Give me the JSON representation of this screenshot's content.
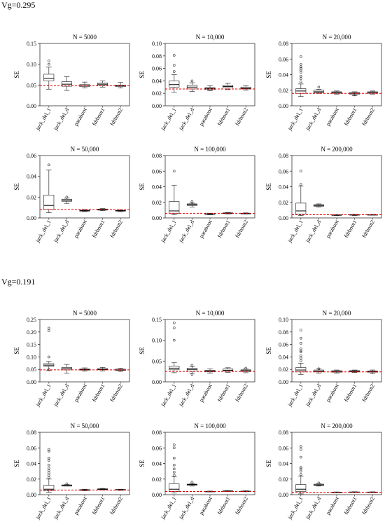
{
  "sections": [
    {
      "label": "Vg=0.295"
    },
    {
      "label": "Vg=0.191"
    }
  ],
  "chart_data": [
    {
      "type": "box",
      "title": "N = 5000",
      "ylabel": "SE",
      "ylim": [
        0,
        0.15
      ],
      "yticks": [
        0.0,
        0.05,
        0.1,
        0.15
      ],
      "ref_line": 0.048,
      "categories": [
        "jack_del_1",
        "jack_del_d",
        "paraboot",
        "fdrboot1",
        "fdrboot2"
      ],
      "boxes": [
        {
          "min": 0.04,
          "q1": 0.06,
          "median": 0.066,
          "q3": 0.076,
          "max": 0.093,
          "outliers": [
            0.1,
            0.108
          ]
        },
        {
          "min": 0.037,
          "q1": 0.047,
          "median": 0.052,
          "q3": 0.058,
          "max": 0.07,
          "outliers": []
        },
        {
          "min": 0.043,
          "q1": 0.046,
          "median": 0.048,
          "q3": 0.051,
          "max": 0.057,
          "outliers": []
        },
        {
          "min": 0.045,
          "q1": 0.049,
          "median": 0.052,
          "q3": 0.055,
          "max": 0.06,
          "outliers": []
        },
        {
          "min": 0.043,
          "q1": 0.046,
          "median": 0.048,
          "q3": 0.05,
          "max": 0.056,
          "outliers": []
        }
      ]
    },
    {
      "type": "box",
      "title": "N = 10,000",
      "ylabel": "SE",
      "ylim": [
        0,
        0.1
      ],
      "yticks": [
        0.0,
        0.02,
        0.04,
        0.06,
        0.08,
        0.1
      ],
      "ref_line": 0.027,
      "categories": [
        "jack_del_1",
        "jack_del_d",
        "paraboot",
        "fdrboot1",
        "fdrboot2"
      ],
      "boxes": [
        {
          "min": 0.022,
          "q1": 0.03,
          "median": 0.034,
          "q3": 0.04,
          "max": 0.05,
          "outliers": [
            0.055,
            0.065,
            0.081
          ]
        },
        {
          "min": 0.023,
          "q1": 0.027,
          "median": 0.03,
          "q3": 0.033,
          "max": 0.037,
          "outliers": [
            0.04
          ]
        },
        {
          "min": 0.024,
          "q1": 0.026,
          "median": 0.028,
          "q3": 0.029,
          "max": 0.032,
          "outliers": []
        },
        {
          "min": 0.026,
          "q1": 0.029,
          "median": 0.031,
          "q3": 0.033,
          "max": 0.036,
          "outliers": []
        },
        {
          "min": 0.025,
          "q1": 0.027,
          "median": 0.028,
          "q3": 0.03,
          "max": 0.032,
          "outliers": []
        }
      ]
    },
    {
      "type": "box",
      "title": "N = 20,000",
      "ylabel": "SE",
      "ylim": [
        0,
        0.08
      ],
      "yticks": [
        0.0,
        0.02,
        0.04,
        0.06,
        0.08
      ],
      "ref_line": 0.016,
      "categories": [
        "jack_del_1",
        "jack_del_d",
        "paraboot",
        "fdrboot1",
        "fdrboot2"
      ],
      "boxes": [
        {
          "min": 0.012,
          "q1": 0.016,
          "median": 0.019,
          "q3": 0.022,
          "max": 0.028,
          "outliers": [
            0.031,
            0.035,
            0.038,
            0.043,
            0.046,
            0.048,
            0.05,
            0.053,
            0.063
          ]
        },
        {
          "min": 0.016,
          "q1": 0.017,
          "median": 0.018,
          "q3": 0.02,
          "max": 0.021,
          "outliers": [
            0.024
          ]
        },
        {
          "min": 0.015,
          "q1": 0.016,
          "median": 0.017,
          "q3": 0.018,
          "max": 0.019,
          "outliers": []
        },
        {
          "min": 0.013,
          "q1": 0.015,
          "median": 0.016,
          "q3": 0.017,
          "max": 0.018,
          "outliers": [
            0.014
          ]
        },
        {
          "min": 0.015,
          "q1": 0.016,
          "median": 0.017,
          "q3": 0.018,
          "max": 0.019,
          "outliers": []
        }
      ]
    },
    {
      "type": "box",
      "title": "N = 50,000",
      "ylabel": "SE",
      "ylim": [
        0,
        0.06
      ],
      "yticks": [
        0.0,
        0.02,
        0.04,
        0.06
      ],
      "ref_line": 0.008,
      "categories": [
        "jack_del_1",
        "jack_del_d",
        "paraboot",
        "fdrboot1",
        "fdrboot2"
      ],
      "boxes": [
        {
          "min": 0.005,
          "q1": 0.008,
          "median": 0.012,
          "q3": 0.022,
          "max": 0.046,
          "outliers": [
            0.051
          ]
        },
        {
          "min": 0.014,
          "q1": 0.016,
          "median": 0.017,
          "q3": 0.018,
          "max": 0.019,
          "outliers": [
            0.02
          ]
        },
        {
          "min": 0.006,
          "q1": 0.0065,
          "median": 0.007,
          "q3": 0.0075,
          "max": 0.008,
          "outliers": []
        },
        {
          "min": 0.007,
          "q1": 0.0075,
          "median": 0.008,
          "q3": 0.0085,
          "max": 0.009,
          "outliers": []
        },
        {
          "min": 0.006,
          "q1": 0.0065,
          "median": 0.007,
          "q3": 0.0072,
          "max": 0.008,
          "outliers": []
        }
      ]
    },
    {
      "type": "box",
      "title": "N = 100,000",
      "ylabel": "SE",
      "ylim": [
        0,
        0.08
      ],
      "yticks": [
        0.0,
        0.02,
        0.04,
        0.06,
        0.08
      ],
      "ref_line": 0.006,
      "categories": [
        "jack_del_1",
        "jack_del_d",
        "paraboot",
        "fdrboot1",
        "fdrboot2"
      ],
      "boxes": [
        {
          "min": 0.004,
          "q1": 0.006,
          "median": 0.009,
          "q3": 0.021,
          "max": 0.042,
          "outliers": [
            0.06
          ]
        },
        {
          "min": 0.014,
          "q1": 0.016,
          "median": 0.017,
          "q3": 0.018,
          "max": 0.019,
          "outliers": [
            0.021
          ]
        },
        {
          "min": 0.004,
          "q1": 0.0045,
          "median": 0.005,
          "q3": 0.0055,
          "max": 0.006,
          "outliers": []
        },
        {
          "min": 0.005,
          "q1": 0.0055,
          "median": 0.006,
          "q3": 0.0065,
          "max": 0.007,
          "outliers": []
        },
        {
          "min": 0.005,
          "q1": 0.0052,
          "median": 0.0055,
          "q3": 0.006,
          "max": 0.0065,
          "outliers": []
        }
      ]
    },
    {
      "type": "box",
      "title": "N = 200,000",
      "ylabel": "SE",
      "ylim": [
        0,
        0.08
      ],
      "yticks": [
        0.0,
        0.02,
        0.04,
        0.06,
        0.08
      ],
      "ref_line": 0.004,
      "categories": [
        "jack_del_1",
        "jack_del_d",
        "paraboot",
        "fdrboot1",
        "fdrboot2"
      ],
      "boxes": [
        {
          "min": 0.003,
          "q1": 0.005,
          "median": 0.009,
          "q3": 0.019,
          "max": 0.041,
          "outliers": [
            0.043,
            0.06
          ]
        },
        {
          "min": 0.014,
          "q1": 0.015,
          "median": 0.016,
          "q3": 0.017,
          "max": 0.018,
          "outliers": []
        },
        {
          "min": 0.003,
          "q1": 0.0033,
          "median": 0.0036,
          "q3": 0.004,
          "max": 0.0043,
          "outliers": []
        },
        {
          "min": 0.003,
          "q1": 0.0035,
          "median": 0.004,
          "q3": 0.0043,
          "max": 0.0046,
          "outliers": []
        },
        {
          "min": 0.0035,
          "q1": 0.0037,
          "median": 0.004,
          "q3": 0.0042,
          "max": 0.0045,
          "outliers": []
        }
      ]
    },
    {
      "type": "box",
      "title": "N = 5000",
      "ylabel": "SE",
      "ylim": [
        0,
        0.25
      ],
      "yticks": [
        0.0,
        0.05,
        0.1,
        0.15,
        0.2,
        0.25
      ],
      "ref_line": 0.048,
      "categories": [
        "jack_del_1",
        "jack_del_d",
        "paraboot",
        "fdrboot1",
        "fdrboot2"
      ],
      "boxes": [
        {
          "min": 0.045,
          "q1": 0.062,
          "median": 0.067,
          "q3": 0.073,
          "max": 0.082,
          "outliers": [
            0.05,
            0.1,
            0.205,
            0.215
          ]
        },
        {
          "min": 0.035,
          "q1": 0.048,
          "median": 0.053,
          "q3": 0.058,
          "max": 0.07,
          "outliers": []
        },
        {
          "min": 0.043,
          "q1": 0.047,
          "median": 0.049,
          "q3": 0.052,
          "max": 0.056,
          "outliers": []
        },
        {
          "min": 0.044,
          "q1": 0.048,
          "median": 0.05,
          "q3": 0.053,
          "max": 0.058,
          "outliers": []
        },
        {
          "min": 0.042,
          "q1": 0.046,
          "median": 0.048,
          "q3": 0.051,
          "max": 0.055,
          "outliers": []
        }
      ]
    },
    {
      "type": "box",
      "title": "N = 10,000",
      "ylabel": "SE",
      "ylim": [
        0,
        0.15
      ],
      "yticks": [
        0.0,
        0.05,
        0.1,
        0.15
      ],
      "ref_line": 0.025,
      "categories": [
        "jack_del_1",
        "jack_del_d",
        "paraboot",
        "fdrboot1",
        "fdrboot2"
      ],
      "boxes": [
        {
          "min": 0.022,
          "q1": 0.029,
          "median": 0.033,
          "q3": 0.038,
          "max": 0.046,
          "outliers": [
            0.1,
            0.13,
            0.142
          ]
        },
        {
          "min": 0.021,
          "q1": 0.026,
          "median": 0.03,
          "q3": 0.033,
          "max": 0.037,
          "outliers": [
            0.018,
            0.04
          ]
        },
        {
          "min": 0.021,
          "q1": 0.024,
          "median": 0.026,
          "q3": 0.028,
          "max": 0.031,
          "outliers": []
        },
        {
          "min": 0.023,
          "q1": 0.026,
          "median": 0.028,
          "q3": 0.031,
          "max": 0.034,
          "outliers": []
        },
        {
          "min": 0.022,
          "q1": 0.025,
          "median": 0.027,
          "q3": 0.029,
          "max": 0.031,
          "outliers": [
            0.033
          ]
        }
      ]
    },
    {
      "type": "box",
      "title": "N = 20,000",
      "ylabel": "SE",
      "ylim": [
        0,
        0.1
      ],
      "yticks": [
        0.0,
        0.02,
        0.04,
        0.06,
        0.08,
        0.1
      ],
      "ref_line": 0.016,
      "categories": [
        "jack_del_1",
        "jack_del_d",
        "paraboot",
        "fdrboot1",
        "fdrboot2"
      ],
      "boxes": [
        {
          "min": 0.012,
          "q1": 0.016,
          "median": 0.019,
          "q3": 0.023,
          "max": 0.03,
          "outliers": [
            0.034,
            0.038,
            0.042,
            0.048,
            0.05,
            0.053,
            0.062,
            0.07,
            0.083
          ]
        },
        {
          "min": 0.014,
          "q1": 0.016,
          "median": 0.017,
          "q3": 0.019,
          "max": 0.021,
          "outliers": [
            0.021
          ]
        },
        {
          "min": 0.014,
          "q1": 0.0155,
          "median": 0.0165,
          "q3": 0.018,
          "max": 0.019,
          "outliers": []
        },
        {
          "min": 0.015,
          "q1": 0.016,
          "median": 0.017,
          "q3": 0.018,
          "max": 0.019,
          "outliers": []
        },
        {
          "min": 0.013,
          "q1": 0.0155,
          "median": 0.0165,
          "q3": 0.0175,
          "max": 0.019,
          "outliers": []
        }
      ]
    },
    {
      "type": "box",
      "title": "N = 50,000",
      "ylabel": "SE",
      "ylim": [
        0,
        0.08
      ],
      "yticks": [
        0.0,
        0.02,
        0.04,
        0.06,
        0.08
      ],
      "ref_line": 0.006,
      "categories": [
        "jack_del_1",
        "jack_del_d",
        "paraboot",
        "fdrboot1",
        "fdrboot2"
      ],
      "boxes": [
        {
          "min": 0.003,
          "q1": 0.005,
          "median": 0.007,
          "q3": 0.012,
          "max": 0.02,
          "outliers": [
            0.022,
            0.025,
            0.028,
            0.031,
            0.034,
            0.038,
            0.044,
            0.047,
            0.056,
            0.058
          ]
        },
        {
          "min": 0.011,
          "q1": 0.011,
          "median": 0.012,
          "q3": 0.0125,
          "max": 0.013,
          "outliers": [
            0.014
          ]
        },
        {
          "min": 0.005,
          "q1": 0.0055,
          "median": 0.006,
          "q3": 0.0065,
          "max": 0.007,
          "outliers": []
        },
        {
          "min": 0.006,
          "q1": 0.0065,
          "median": 0.007,
          "q3": 0.0075,
          "max": 0.008,
          "outliers": []
        },
        {
          "min": 0.0055,
          "q1": 0.006,
          "median": 0.0063,
          "q3": 0.0067,
          "max": 0.007,
          "outliers": []
        }
      ]
    },
    {
      "type": "box",
      "title": "N = 100,000",
      "ylabel": "SE",
      "ylim": [
        0,
        0.08
      ],
      "yticks": [
        0.0,
        0.02,
        0.04,
        0.06,
        0.08
      ],
      "ref_line": 0.004,
      "categories": [
        "jack_del_1",
        "jack_del_d",
        "paraboot",
        "fdrboot1",
        "fdrboot2"
      ],
      "boxes": [
        {
          "min": 0.002,
          "q1": 0.004,
          "median": 0.007,
          "q3": 0.014,
          "max": 0.023,
          "outliers": [
            0.025,
            0.029,
            0.033,
            0.038,
            0.047,
            0.06,
            0.064
          ]
        },
        {
          "min": 0.011,
          "q1": 0.012,
          "median": 0.013,
          "q3": 0.0135,
          "max": 0.015,
          "outliers": [
            0.016
          ]
        },
        {
          "min": 0.0035,
          "q1": 0.0038,
          "median": 0.004,
          "q3": 0.0043,
          "max": 0.0046,
          "outliers": []
        },
        {
          "min": 0.004,
          "q1": 0.0043,
          "median": 0.0046,
          "q3": 0.0049,
          "max": 0.0052,
          "outliers": []
        },
        {
          "min": 0.0037,
          "q1": 0.004,
          "median": 0.0043,
          "q3": 0.0046,
          "max": 0.005,
          "outliers": []
        }
      ]
    },
    {
      "type": "box",
      "title": "N = 200,000",
      "ylabel": "SE",
      "ylim": [
        0,
        0.08
      ],
      "yticks": [
        0.0,
        0.02,
        0.04,
        0.06,
        0.08
      ],
      "ref_line": 0.003,
      "categories": [
        "jack_del_1",
        "jack_del_d",
        "paraboot",
        "fdrboot1",
        "fdrboot2"
      ],
      "boxes": [
        {
          "min": 0.001,
          "q1": 0.004,
          "median": 0.007,
          "q3": 0.013,
          "max": 0.024,
          "outliers": [
            0.026,
            0.03,
            0.033,
            0.035,
            0.048,
            0.058,
            0.062
          ]
        },
        {
          "min": 0.011,
          "q1": 0.012,
          "median": 0.0125,
          "q3": 0.0135,
          "max": 0.014,
          "outliers": [
            0.015
          ]
        },
        {
          "min": 0.0025,
          "q1": 0.0028,
          "median": 0.003,
          "q3": 0.0032,
          "max": 0.0035,
          "outliers": []
        },
        {
          "min": 0.0028,
          "q1": 0.003,
          "median": 0.0032,
          "q3": 0.0035,
          "max": 0.0038,
          "outliers": []
        },
        {
          "min": 0.0027,
          "q1": 0.0029,
          "median": 0.0031,
          "q3": 0.0034,
          "max": 0.0037,
          "outliers": []
        }
      ]
    }
  ],
  "colors": {
    "ref_line": "#e00000",
    "box_stroke": "#333333",
    "axis": "#333333"
  }
}
